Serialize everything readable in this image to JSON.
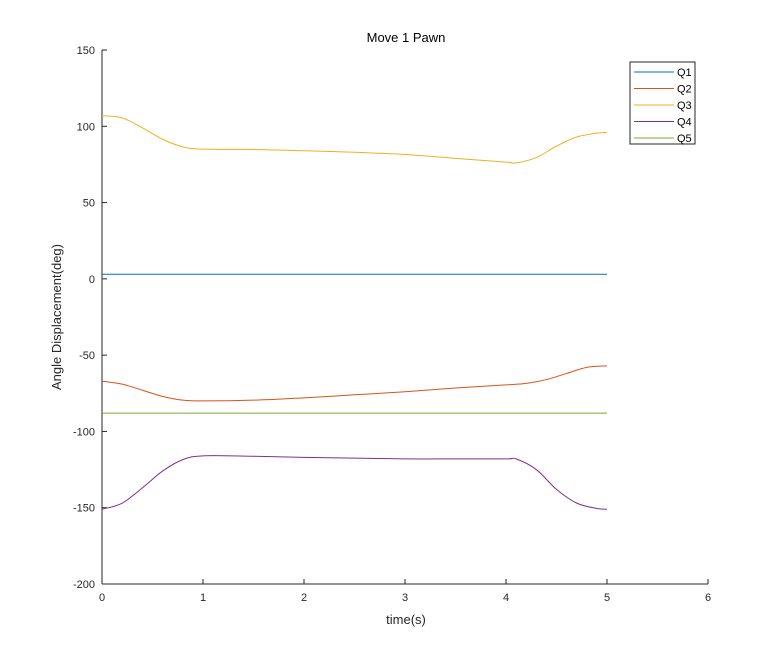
{
  "chart_data": {
    "type": "line",
    "title": "Move 1 Pawn",
    "xlabel": "time(s)",
    "ylabel": "Angle Displacement(deg)",
    "xlim": [
      0,
      6
    ],
    "ylim": [
      -200,
      150
    ],
    "xticks": [
      0,
      1,
      2,
      3,
      4,
      5,
      6
    ],
    "yticks": [
      -200,
      -150,
      -100,
      -50,
      0,
      50,
      100,
      150
    ],
    "xtick_labels": [
      "0",
      "1",
      "2",
      "3",
      "4",
      "5",
      "6"
    ],
    "ytick_labels": [
      "-200",
      "-150",
      "-100",
      "-50",
      "0",
      "50",
      "100",
      "150"
    ],
    "grid": false,
    "legend_placement": "top-right",
    "series": [
      {
        "name": "Q1",
        "color": "#0072BD",
        "x": [
          0,
          5
        ],
        "y": [
          3,
          3
        ]
      },
      {
        "name": "Q2",
        "color": "#D95319",
        "x": [
          0,
          0.2,
          0.4,
          0.6,
          0.8,
          1.0,
          1.5,
          2.0,
          2.5,
          3.0,
          3.5,
          4.0,
          4.2,
          4.4,
          4.6,
          4.8,
          5.0
        ],
        "y": [
          -67,
          -69,
          -73,
          -77,
          -79.5,
          -80,
          -79.5,
          -78,
          -76,
          -74,
          -71.5,
          -69.5,
          -68.5,
          -66,
          -62,
          -58,
          -57
        ]
      },
      {
        "name": "Q3",
        "color": "#EDB120",
        "x": [
          0,
          0.2,
          0.4,
          0.6,
          0.8,
          1.0,
          1.5,
          2.0,
          2.5,
          3.0,
          3.5,
          4.0,
          4.1,
          4.3,
          4.5,
          4.7,
          4.9,
          5.0
        ],
        "y": [
          107,
          105.5,
          99,
          91.5,
          86.5,
          85,
          84.8,
          84,
          83,
          81.5,
          79,
          76.5,
          76,
          79.5,
          87,
          93,
          95.5,
          96
        ]
      },
      {
        "name": "Q4",
        "color": "#7E2F8E",
        "x": [
          0,
          0.2,
          0.4,
          0.6,
          0.8,
          1.0,
          1.5,
          2.0,
          2.5,
          3.0,
          3.5,
          4.0,
          4.1,
          4.3,
          4.5,
          4.7,
          4.9,
          5.0
        ],
        "y": [
          -151,
          -147,
          -137,
          -126,
          -118.5,
          -116,
          -116.3,
          -117,
          -117.5,
          -118,
          -118,
          -118,
          -118,
          -125,
          -138,
          -147,
          -150.5,
          -151
        ]
      },
      {
        "name": "Q5",
        "color": "#77AC30",
        "x": [
          0,
          5
        ],
        "y": [
          -88,
          -88
        ]
      }
    ]
  }
}
